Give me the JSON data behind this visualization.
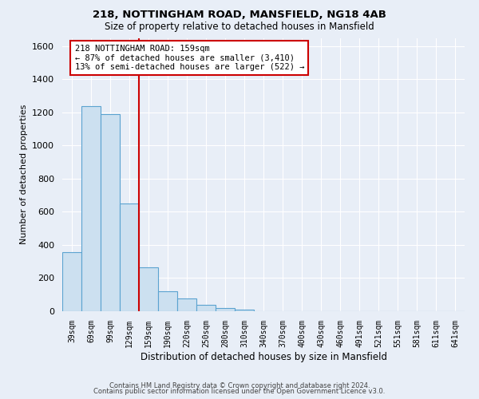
{
  "title": "218, NOTTINGHAM ROAD, MANSFIELD, NG18 4AB",
  "subtitle": "Size of property relative to detached houses in Mansfield",
  "xlabel": "Distribution of detached houses by size in Mansfield",
  "ylabel": "Number of detached properties",
  "bar_labels": [
    "39sqm",
    "69sqm",
    "99sqm",
    "129sqm",
    "159sqm",
    "190sqm",
    "220sqm",
    "250sqm",
    "280sqm",
    "310sqm",
    "340sqm",
    "370sqm",
    "400sqm",
    "430sqm",
    "460sqm",
    "491sqm",
    "521sqm",
    "551sqm",
    "581sqm",
    "611sqm",
    "641sqm"
  ],
  "bar_values": [
    355,
    1240,
    1190,
    650,
    265,
    120,
    75,
    40,
    20,
    10,
    0,
    0,
    0,
    0,
    0,
    0,
    0,
    0,
    0,
    0,
    0
  ],
  "bar_color": "#cce0f0",
  "bar_edge_color": "#5ba3d0",
  "vline_color": "#cc0000",
  "annotation_text": "218 NOTTINGHAM ROAD: 159sqm\n← 87% of detached houses are smaller (3,410)\n13% of semi-detached houses are larger (522) →",
  "annotation_box_color": "#ffffff",
  "annotation_box_edge": "#cc0000",
  "ylim": [
    0,
    1650
  ],
  "yticks": [
    0,
    200,
    400,
    600,
    800,
    1000,
    1200,
    1400,
    1600
  ],
  "footer_line1": "Contains HM Land Registry data © Crown copyright and database right 2024.",
  "footer_line2": "Contains public sector information licensed under the Open Government Licence v3.0.",
  "background_color": "#e8eef7",
  "grid_color": "#ffffff"
}
